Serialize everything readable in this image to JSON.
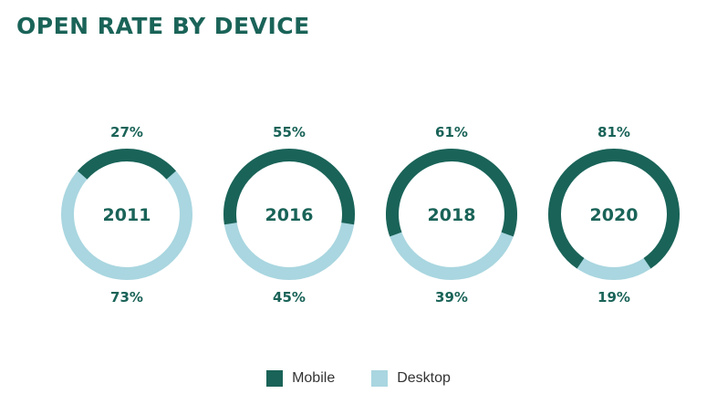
{
  "title": "OPEN RATE BY DEVICE",
  "colors": {
    "mobile": "#1a6358",
    "desktop": "#a9d6e0"
  },
  "chart_data": {
    "type": "donut",
    "categories": [
      "2011",
      "2016",
      "2018",
      "2020"
    ],
    "series": [
      {
        "name": "Mobile",
        "values": [
          27,
          55,
          61,
          81
        ],
        "labels": [
          "27%",
          "55%",
          "61%",
          "81%"
        ]
      },
      {
        "name": "Desktop",
        "values": [
          73,
          45,
          39,
          19
        ],
        "labels": [
          "73%",
          "45%",
          "39%",
          "19%"
        ]
      }
    ],
    "unit": "%",
    "legend_position": "bottom-center"
  }
}
